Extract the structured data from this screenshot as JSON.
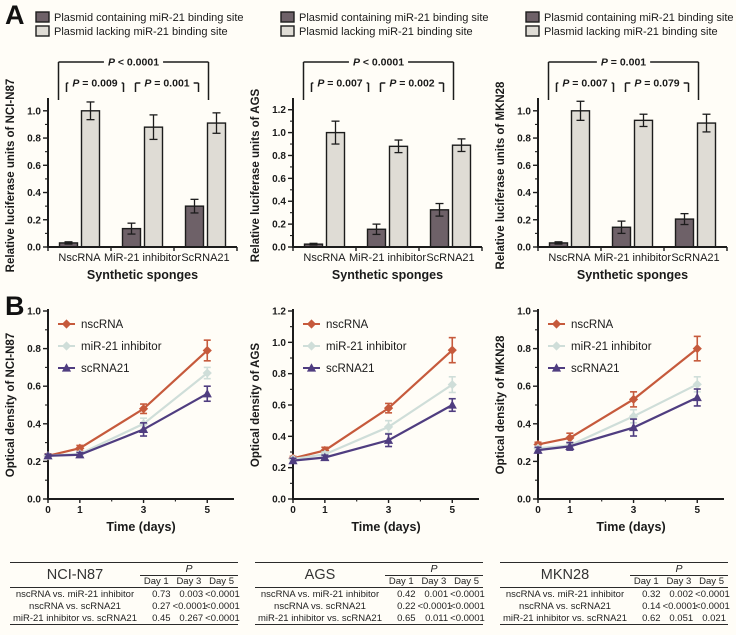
{
  "figure": {
    "panel_a_label": "A",
    "panel_b_label": "B"
  },
  "colors": {
    "background": "#fffdf7",
    "axis": "#1c1c1c",
    "bar_dark": "#6e6168",
    "bar_light": "#dfdcd5",
    "nscRNA": "#c65a3c",
    "mir21_inhibitor": "#cfded9",
    "scRNA21": "#4f3d80"
  },
  "chart_data": [
    {
      "type": "bar",
      "title": "",
      "ylabel": "Relative luciferase units of NCI-N87",
      "xlabel": "Synthetic sponges",
      "categories": [
        "NscRNA",
        "MiR-21 inhibitor",
        "ScRNA21"
      ],
      "yticks": [
        0.0,
        0.2,
        0.4,
        0.6,
        0.8,
        1.0
      ],
      "ylim": [
        0,
        1.05
      ],
      "legend_position": "top",
      "grid": false,
      "series": [
        {
          "name": "Plasmid containing miR-21 binding site",
          "color_key": "bar_dark",
          "values": [
            0.03,
            0.135,
            0.3
          ],
          "errors": [
            0.008,
            0.04,
            0.05
          ]
        },
        {
          "name": "Plasmid lacking miR-21 binding site",
          "color_key": "bar_light",
          "values": [
            1.0,
            0.88,
            0.91
          ],
          "errors": [
            0.065,
            0.09,
            0.075
          ]
        }
      ],
      "pvalues": {
        "outer": "P < 0.0001",
        "inner_left": "P = 0.009",
        "inner_right": "P = 0.001"
      }
    },
    {
      "type": "bar",
      "title": "",
      "ylabel": "Relative luciferase units of AGS",
      "xlabel": "Synthetic sponges",
      "categories": [
        "NscRNA",
        "MiR-21 inhibitor",
        "ScRNA21"
      ],
      "yticks": [
        0.0,
        0.2,
        0.4,
        0.6,
        0.8,
        1.0,
        1.2
      ],
      "ylim": [
        0,
        1.25
      ],
      "legend_position": "top",
      "grid": false,
      "series": [
        {
          "name": "Plasmid containing miR-21 binding site",
          "color_key": "bar_dark",
          "values": [
            0.025,
            0.155,
            0.325
          ],
          "errors": [
            0.007,
            0.045,
            0.055
          ]
        },
        {
          "name": "Plasmid lacking miR-21 binding site",
          "color_key": "bar_light",
          "values": [
            1.0,
            0.88,
            0.89
          ],
          "errors": [
            0.1,
            0.055,
            0.055
          ]
        }
      ],
      "pvalues": {
        "outer": "P < 0.0001",
        "inner_left": "P = 0.007",
        "inner_right": "P = 0.002"
      }
    },
    {
      "type": "bar",
      "title": "",
      "ylabel": "Relative luciferase units of MKN28",
      "xlabel": "Synthetic sponges",
      "categories": [
        "NscRNA",
        "MiR-21 inhibitor",
        "ScRNA21"
      ],
      "yticks": [
        0.0,
        0.2,
        0.4,
        0.6,
        0.8,
        1.0
      ],
      "ylim": [
        0,
        1.05
      ],
      "legend_position": "top",
      "grid": false,
      "series": [
        {
          "name": "Plasmid containing miR-21 binding site",
          "color_key": "bar_dark",
          "values": [
            0.03,
            0.145,
            0.205
          ],
          "errors": [
            0.008,
            0.045,
            0.04
          ]
        },
        {
          "name": "Plasmid lacking miR-21 binding site",
          "color_key": "bar_light",
          "values": [
            1.0,
            0.93,
            0.91
          ],
          "errors": [
            0.07,
            0.045,
            0.065
          ]
        }
      ],
      "pvalues": {
        "outer": "P = 0.001",
        "inner_left": "P = 0.007",
        "inner_right": "P = 0.079"
      }
    },
    {
      "type": "line",
      "title": "",
      "ylabel": "Optical density of NCI-N87",
      "xlabel": "Time (days)",
      "x": [
        0,
        1,
        3,
        5
      ],
      "xticks_labeled": [
        0,
        1,
        3,
        5
      ],
      "xticks_minor": [
        2,
        4
      ],
      "xlim": [
        0,
        5.4
      ],
      "yticks": [
        0.0,
        0.2,
        0.4,
        0.6,
        0.8,
        1.0
      ],
      "ylim": [
        0,
        1.0
      ],
      "legend_position": "top-left",
      "grid": false,
      "series": [
        {
          "name": "nscRNA",
          "color_key": "nscRNA",
          "marker": "diamond",
          "values": [
            0.23,
            0.27,
            0.48,
            0.79
          ],
          "errors": [
            0.01,
            0.015,
            0.025,
            0.055
          ]
        },
        {
          "name": "miR-21 inhibitor",
          "color_key": "mir21_inhibitor",
          "marker": "diamond",
          "values": [
            0.23,
            0.24,
            0.4,
            0.67
          ],
          "errors": [
            0.008,
            0.012,
            0.03,
            0.03
          ]
        },
        {
          "name": "scRNA21",
          "color_key": "scRNA21",
          "marker": "triangle",
          "values": [
            0.23,
            0.235,
            0.37,
            0.56
          ],
          "errors": [
            0.008,
            0.012,
            0.035,
            0.04
          ]
        }
      ]
    },
    {
      "type": "line",
      "title": "",
      "ylabel": "Optical density of AGS",
      "xlabel": "Time (days)",
      "x": [
        0,
        1,
        3,
        5
      ],
      "xticks_labeled": [
        0,
        1,
        3,
        5
      ],
      "xticks_minor": [
        2,
        4
      ],
      "xlim": [
        0,
        5.4
      ],
      "yticks": [
        0.0,
        0.2,
        0.4,
        0.6,
        0.8,
        1.0,
        1.2
      ],
      "ylim": [
        0,
        1.2
      ],
      "legend_position": "top-left",
      "grid": false,
      "series": [
        {
          "name": "nscRNA",
          "color_key": "nscRNA",
          "marker": "diamond",
          "values": [
            0.26,
            0.31,
            0.58,
            0.95
          ],
          "errors": [
            0.012,
            0.02,
            0.03,
            0.08
          ]
        },
        {
          "name": "miR-21 inhibitor",
          "color_key": "mir21_inhibitor",
          "marker": "diamond",
          "values": [
            0.255,
            0.285,
            0.46,
            0.73
          ],
          "errors": [
            0.01,
            0.015,
            0.04,
            0.05
          ]
        },
        {
          "name": "scRNA21",
          "color_key": "scRNA21",
          "marker": "triangle",
          "values": [
            0.245,
            0.265,
            0.375,
            0.6
          ],
          "errors": [
            0.015,
            0.015,
            0.04,
            0.04
          ]
        }
      ]
    },
    {
      "type": "line",
      "title": "",
      "ylabel": "Optical density of MKN28",
      "xlabel": "Time (days)",
      "x": [
        0,
        1,
        3,
        5
      ],
      "xticks_labeled": [
        0,
        1,
        3,
        5
      ],
      "xticks_minor": [
        2,
        4
      ],
      "xlim": [
        0,
        5.4
      ],
      "yticks": [
        0.0,
        0.2,
        0.4,
        0.6,
        0.8,
        1.0
      ],
      "ylim": [
        0,
        1.0
      ],
      "legend_position": "top-left",
      "grid": false,
      "series": [
        {
          "name": "nscRNA",
          "color_key": "nscRNA",
          "marker": "diamond",
          "values": [
            0.29,
            0.325,
            0.53,
            0.8
          ],
          "errors": [
            0.012,
            0.025,
            0.04,
            0.065
          ]
        },
        {
          "name": "miR-21 inhibitor",
          "color_key": "mir21_inhibitor",
          "marker": "diamond",
          "values": [
            0.27,
            0.285,
            0.44,
            0.61
          ],
          "errors": [
            0.01,
            0.015,
            0.035,
            0.04
          ]
        },
        {
          "name": "scRNA21",
          "color_key": "scRNA21",
          "marker": "triangle",
          "values": [
            0.26,
            0.28,
            0.38,
            0.54
          ],
          "errors": [
            0.015,
            0.02,
            0.045,
            0.045
          ]
        }
      ]
    },
    {
      "type": "table",
      "title": "NCI-N87",
      "p_header": "P",
      "day_headers": [
        "Day 1",
        "Day 3",
        "Day 5"
      ],
      "rows": [
        {
          "label": "nscRNA vs. miR-21 inhibitor",
          "values": [
            "0.73",
            "0.003",
            "<0.0001"
          ]
        },
        {
          "label": "nscRNA vs. scRNA21",
          "values": [
            "0.27",
            "<0.0001",
            "<0.0001"
          ]
        },
        {
          "label": "miR-21 inhibitor vs. scRNA21",
          "values": [
            "0.45",
            "0.267",
            "<0.0001"
          ]
        }
      ]
    },
    {
      "type": "table",
      "title": "AGS",
      "p_header": "P",
      "day_headers": [
        "Day 1",
        "Day 3",
        "Day 5"
      ],
      "rows": [
        {
          "label": "nscRNA vs. miR-21 inhibitor",
          "values": [
            "0.42",
            "0.001",
            "<0.0001"
          ]
        },
        {
          "label": "nscRNA vs. scRNA21",
          "values": [
            "0.22",
            "<0.0001",
            "<0.0001"
          ]
        },
        {
          "label": "miR-21 inhibitor vs. scRNA21",
          "values": [
            "0.65",
            "0.011",
            "<0.0001"
          ]
        }
      ]
    },
    {
      "type": "table",
      "title": "MKN28",
      "p_header": "P",
      "day_headers": [
        "Day 1",
        "Day 3",
        "Day 5"
      ],
      "rows": [
        {
          "label": "nscRNA vs. miR-21 inhibitor",
          "values": [
            "0.32",
            "0.002",
            "<0.0001"
          ]
        },
        {
          "label": "nscRNA vs. scRNA21",
          "values": [
            "0.14",
            "<0.0001",
            "<0.0001"
          ]
        },
        {
          "label": "miR-21 inhibitor vs. scRNA21",
          "values": [
            "0.62",
            "0.051",
            "0.021"
          ]
        }
      ]
    }
  ]
}
